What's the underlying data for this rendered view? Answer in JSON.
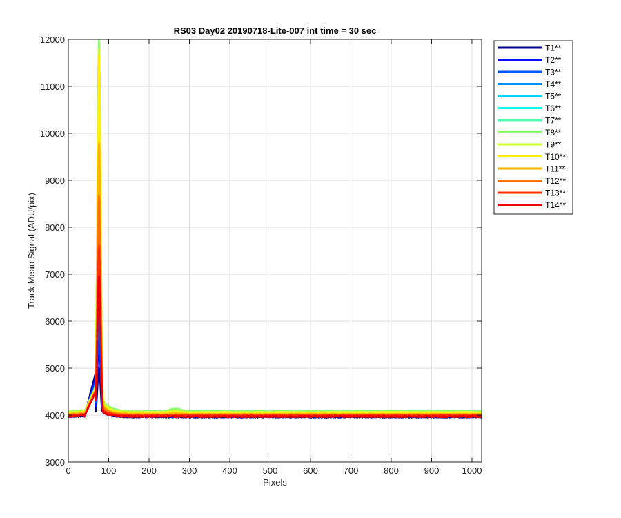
{
  "chart_data": {
    "type": "line",
    "title": "RS03 Day02 20190718-Lite-007 int time = 30 sec",
    "xlabel": "Pixels",
    "ylabel": "Track Mean Signal (ADU/pix)",
    "xlim": [
      0,
      1024
    ],
    "ylim": [
      3000,
      12000
    ],
    "xticks": [
      0,
      100,
      200,
      300,
      400,
      500,
      600,
      700,
      800,
      900,
      1000
    ],
    "yticks": [
      3000,
      4000,
      5000,
      6000,
      7000,
      8000,
      9000,
      10000,
      11000,
      12000
    ],
    "xtick_labels": [
      "0",
      "100",
      "200",
      "300",
      "400",
      "500",
      "600",
      "700",
      "800",
      "900",
      "1000"
    ],
    "ytick_labels": [
      "3000",
      "4000",
      "5000",
      "6000",
      "7000",
      "8000",
      "9000",
      "10000",
      "11000",
      "12000"
    ],
    "grid": true,
    "legend_position": "outside-top-right",
    "series": [
      {
        "name": "T1**",
        "color": "#00008f",
        "baseline": 3960,
        "peak": 5000,
        "shoulder": 4900,
        "tail": 4100,
        "bump": 0
      },
      {
        "name": "T2**",
        "color": "#0010ff",
        "baseline": 3980,
        "peak": 5600,
        "shoulder": 4800,
        "tail": 4120,
        "bump": 0
      },
      {
        "name": "T3**",
        "color": "#0050ff",
        "baseline": 3990,
        "peak": 6200,
        "shoulder": 4700,
        "tail": 4150,
        "bump": 0
      },
      {
        "name": "T4**",
        "color": "#0090ff",
        "baseline": 4000,
        "peak": 7200,
        "shoulder": 4650,
        "tail": 4200,
        "bump": 20
      },
      {
        "name": "T5**",
        "color": "#00d0ff",
        "baseline": 4020,
        "peak": 8500,
        "shoulder": 4600,
        "tail": 4250,
        "bump": 30
      },
      {
        "name": "T6**",
        "color": "#10ffef",
        "baseline": 4040,
        "peak": 10000,
        "shoulder": 4600,
        "tail": 4300,
        "bump": 40
      },
      {
        "name": "T7**",
        "color": "#50ffaf",
        "baseline": 4060,
        "peak": 11200,
        "shoulder": 4600,
        "tail": 4350,
        "bump": 60
      },
      {
        "name": "T8**",
        "color": "#8fff70",
        "baseline": 4080,
        "peak": 12000,
        "shoulder": 4600,
        "tail": 4400,
        "bump": 50
      },
      {
        "name": "T9**",
        "color": "#cfff30",
        "baseline": 4060,
        "peak": 11800,
        "shoulder": 4600,
        "tail": 4350,
        "bump": 30
      },
      {
        "name": "T10**",
        "color": "#ffef00",
        "baseline": 4040,
        "peak": 11650,
        "shoulder": 4580,
        "tail": 4300,
        "bump": 20
      },
      {
        "name": "T11**",
        "color": "#ffb000",
        "baseline": 4020,
        "peak": 9800,
        "shoulder": 4550,
        "tail": 4250,
        "bump": 10
      },
      {
        "name": "T12**",
        "color": "#ff7000",
        "baseline": 4000,
        "peak": 8650,
        "shoulder": 4520,
        "tail": 4200,
        "bump": 0
      },
      {
        "name": "T13**",
        "color": "#ff3000",
        "baseline": 3990,
        "peak": 7600,
        "shoulder": 4500,
        "tail": 4150,
        "bump": 0
      },
      {
        "name": "T14**",
        "color": "#f00000",
        "baseline": 3970,
        "peak": 6950,
        "shoulder": 4500,
        "tail": 4100,
        "bump": 0
      }
    ]
  }
}
